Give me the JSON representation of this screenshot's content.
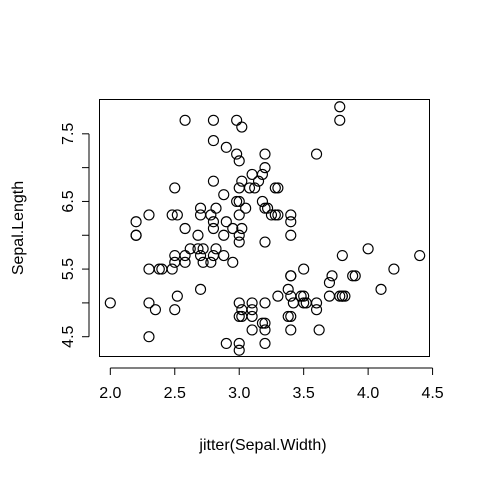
{
  "chart_data": {
    "type": "scatter",
    "title": "",
    "xlabel": "jitter(Sepal.Width)",
    "ylabel": "Sepal.Length",
    "xlim": [
      1.92,
      4.48
    ],
    "ylim": [
      4.2,
      8.0
    ],
    "xticks": [
      2.0,
      2.5,
      3.0,
      3.5,
      4.0,
      4.5
    ],
    "xtick_labels": [
      "2.0",
      "2.5",
      "3.0",
      "3.5",
      "4.0",
      "4.5"
    ],
    "yticks": [
      4.5,
      5.0,
      5.5,
      6.0,
      6.5,
      7.0,
      7.5
    ],
    "ytick_labels": [
      "4.5",
      "",
      "5.5",
      "",
      "6.5",
      "",
      "7.5"
    ],
    "grid": false,
    "marker": "open-circle",
    "points": [
      [
        2.0,
        5.0
      ],
      [
        2.3,
        4.5
      ],
      [
        2.3,
        5.0
      ],
      [
        2.35,
        4.9
      ],
      [
        2.5,
        4.9
      ],
      [
        2.52,
        5.1
      ],
      [
        2.3,
        5.5
      ],
      [
        2.38,
        5.5
      ],
      [
        2.4,
        5.5
      ],
      [
        2.48,
        5.5
      ],
      [
        2.5,
        5.6
      ],
      [
        2.58,
        5.6
      ],
      [
        2.58,
        5.7
      ],
      [
        2.5,
        5.7
      ],
      [
        2.62,
        5.8
      ],
      [
        2.68,
        5.8
      ],
      [
        2.72,
        5.8
      ],
      [
        2.7,
        5.7
      ],
      [
        2.72,
        5.6
      ],
      [
        2.78,
        5.6
      ],
      [
        2.8,
        5.7
      ],
      [
        2.82,
        5.8
      ],
      [
        2.88,
        5.7
      ],
      [
        2.95,
        5.6
      ],
      [
        2.7,
        5.2
      ],
      [
        2.2,
        6.0
      ],
      [
        2.2,
        6.0
      ],
      [
        2.2,
        6.2
      ],
      [
        2.3,
        6.3
      ],
      [
        2.48,
        6.3
      ],
      [
        2.52,
        6.3
      ],
      [
        2.58,
        6.1
      ],
      [
        2.68,
        6.0
      ],
      [
        2.7,
        6.3
      ],
      [
        2.7,
        6.4
      ],
      [
        2.78,
        6.3
      ],
      [
        2.8,
        6.2
      ],
      [
        2.8,
        6.1
      ],
      [
        2.82,
        6.4
      ],
      [
        2.88,
        6.0
      ],
      [
        2.9,
        6.2
      ],
      [
        2.95,
        6.1
      ],
      [
        3.0,
        6.0
      ],
      [
        3.0,
        5.9
      ],
      [
        3.02,
        6.1
      ],
      [
        3.0,
        6.3
      ],
      [
        3.05,
        6.4
      ],
      [
        2.5,
        6.7
      ],
      [
        2.8,
        6.8
      ],
      [
        2.88,
        6.6
      ],
      [
        2.98,
        6.5
      ],
      [
        3.0,
        6.5
      ],
      [
        3.0,
        6.7
      ],
      [
        3.02,
        6.8
      ],
      [
        3.08,
        6.7
      ],
      [
        3.1,
        6.9
      ],
      [
        3.12,
        6.7
      ],
      [
        3.15,
        6.8
      ],
      [
        3.18,
        6.9
      ],
      [
        3.2,
        6.4
      ],
      [
        3.22,
        6.4
      ],
      [
        3.18,
        6.5
      ],
      [
        3.25,
        6.3
      ],
      [
        3.28,
        6.7
      ],
      [
        3.3,
        6.7
      ],
      [
        3.28,
        6.3
      ],
      [
        3.3,
        6.3
      ],
      [
        3.4,
        6.3
      ],
      [
        3.4,
        6.2
      ],
      [
        3.4,
        6.0
      ],
      [
        3.2,
        5.9
      ],
      [
        2.58,
        7.7
      ],
      [
        2.8,
        7.7
      ],
      [
        2.8,
        7.4
      ],
      [
        2.9,
        7.3
      ],
      [
        2.98,
        7.2
      ],
      [
        3.0,
        7.1
      ],
      [
        3.2,
        7.2
      ],
      [
        2.98,
        7.7
      ],
      [
        3.02,
        7.6
      ],
      [
        3.2,
        7.0
      ],
      [
        3.6,
        7.2
      ],
      [
        3.78,
        7.9
      ],
      [
        3.78,
        7.7
      ],
      [
        2.9,
        4.4
      ],
      [
        3.0,
        4.4
      ],
      [
        3.0,
        4.3
      ],
      [
        3.2,
        4.4
      ],
      [
        3.2,
        4.6
      ],
      [
        3.18,
        4.7
      ],
      [
        3.2,
        4.7
      ],
      [
        3.1,
        4.6
      ],
      [
        3.1,
        4.8
      ],
      [
        3.02,
        4.8
      ],
      [
        3.0,
        4.8
      ],
      [
        3.02,
        4.9
      ],
      [
        3.0,
        5.0
      ],
      [
        3.1,
        5.0
      ],
      [
        3.1,
        4.9
      ],
      [
        3.2,
        5.0
      ],
      [
        3.3,
        5.1
      ],
      [
        3.38,
        4.8
      ],
      [
        3.4,
        4.8
      ],
      [
        3.4,
        4.6
      ],
      [
        3.42,
        5.0
      ],
      [
        3.4,
        5.1
      ],
      [
        3.38,
        5.2
      ],
      [
        3.4,
        5.4
      ],
      [
        3.4,
        5.4
      ],
      [
        3.5,
        5.5
      ],
      [
        3.48,
        5.1
      ],
      [
        3.5,
        5.0
      ],
      [
        3.5,
        5.1
      ],
      [
        3.52,
        5.0
      ],
      [
        3.62,
        4.6
      ],
      [
        3.6,
        4.9
      ],
      [
        3.6,
        5.0
      ],
      [
        3.7,
        5.1
      ],
      [
        3.7,
        5.3
      ],
      [
        3.72,
        5.4
      ],
      [
        3.8,
        5.1
      ],
      [
        3.8,
        5.1
      ],
      [
        3.78,
        5.1
      ],
      [
        3.82,
        5.1
      ],
      [
        3.88,
        5.4
      ],
      [
        3.9,
        5.4
      ],
      [
        3.8,
        5.7
      ],
      [
        4.0,
        5.8
      ],
      [
        4.1,
        5.2
      ],
      [
        4.2,
        5.5
      ],
      [
        4.4,
        5.7
      ]
    ]
  }
}
